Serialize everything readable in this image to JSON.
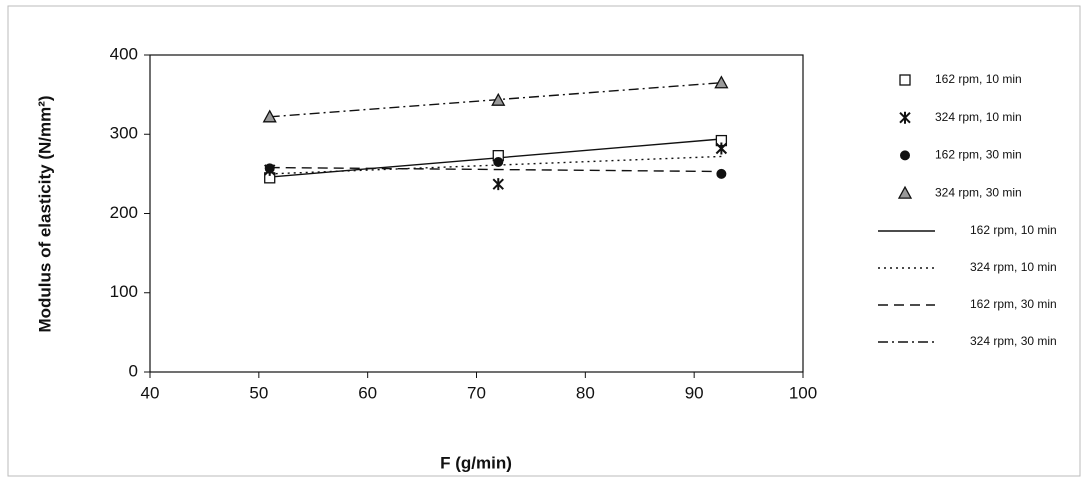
{
  "chart_data": {
    "type": "scatter",
    "x_label": "F (g/min)",
    "y_label": "Modulus of elasticity (N/mm²)",
    "x": [
      51,
      72,
      92.5
    ],
    "xlim": [
      40,
      100
    ],
    "xticks": [
      40,
      50,
      60,
      70,
      80,
      90,
      100
    ],
    "ylim": [
      0,
      400
    ],
    "yticks": [
      0,
      100,
      200,
      300,
      400
    ],
    "trend_x": [
      51,
      92.5
    ],
    "series": [
      {
        "name": "162 rpm, 10 min",
        "marker": "square",
        "color": "#111",
        "values": [
          245,
          273,
          292
        ],
        "trend": {
          "name": "162 rpm, 10 min",
          "dash": "solid",
          "values": [
            246,
            294
          ]
        }
      },
      {
        "name": "324 rpm, 10 min",
        "marker": "star",
        "color": "#111",
        "values": [
          255,
          237,
          282
        ],
        "trend": {
          "name": "324 rpm, 10 min",
          "dash": "dotted",
          "values": [
            250,
            272
          ]
        }
      },
      {
        "name": "162 rpm, 30 min",
        "marker": "circle",
        "color": "#111",
        "values": [
          257,
          265,
          250
        ],
        "trend": {
          "name": "162 rpm, 30 min",
          "dash": "dashed",
          "values": [
            258,
            253
          ]
        }
      },
      {
        "name": "324 rpm, 30 min",
        "marker": "triangle",
        "color": "#111",
        "values": [
          322,
          343,
          365
        ],
        "trend": {
          "name": "324 rpm, 30 min",
          "dash": "dashdot",
          "values": [
            322,
            365
          ]
        }
      }
    ]
  }
}
